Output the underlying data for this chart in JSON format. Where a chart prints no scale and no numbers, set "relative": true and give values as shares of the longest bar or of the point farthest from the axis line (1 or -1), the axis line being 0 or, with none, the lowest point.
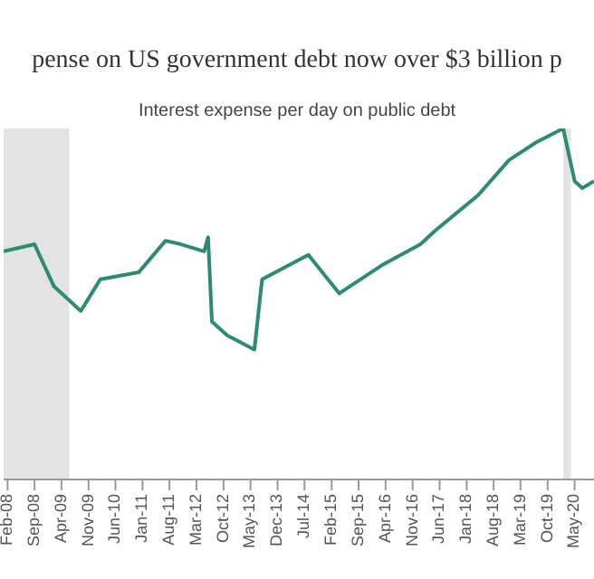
{
  "chart_data": {
    "type": "line",
    "title": "pense on US government debt now over $3 billion p",
    "subtitle": "Interest expense per day on public debt",
    "relative": true,
    "grid": false,
    "legend": false,
    "marker": "none",
    "line_style": "solid",
    "xlim": [
      "2008-01",
      "2020-10"
    ],
    "xticks": [
      {
        "value": "2008-02",
        "label": "Feb-08"
      },
      {
        "value": "2008-09",
        "label": "Sep-08"
      },
      {
        "value": "2009-04",
        "label": "Apr-09"
      },
      {
        "value": "2009-11",
        "label": "Nov-09"
      },
      {
        "value": "2010-06",
        "label": "Jun-10"
      },
      {
        "value": "2011-01",
        "label": "Jan-11"
      },
      {
        "value": "2011-08",
        "label": "Aug-11"
      },
      {
        "value": "2012-03",
        "label": "Mar-12"
      },
      {
        "value": "2012-10",
        "label": "Oct-12"
      },
      {
        "value": "2013-05",
        "label": "May-13"
      },
      {
        "value": "2013-12",
        "label": "Dec-13"
      },
      {
        "value": "2014-07",
        "label": "Jul-14"
      },
      {
        "value": "2015-02",
        "label": "Feb-15"
      },
      {
        "value": "2015-09",
        "label": "Sep-15"
      },
      {
        "value": "2016-04",
        "label": "Apr-16"
      },
      {
        "value": "2016-11",
        "label": "Nov-16"
      },
      {
        "value": "2017-06",
        "label": "Jun-17"
      },
      {
        "value": "2018-01",
        "label": "Jan-18"
      },
      {
        "value": "2018-08",
        "label": "Aug-18"
      },
      {
        "value": "2019-03",
        "label": "Mar-19"
      },
      {
        "value": "2019-10",
        "label": "Oct-19"
      },
      {
        "value": "2020-05",
        "label": "May-20"
      }
    ],
    "x": [
      "2008-01",
      "2008-09",
      "2009-02",
      "2009-09",
      "2010-02",
      "2010-12",
      "2011-07",
      "2011-11",
      "2012-05",
      "2012-06",
      "2012-07",
      "2012-11",
      "2013-06",
      "2013-08",
      "2014-08",
      "2015-04",
      "2016-03",
      "2017-01",
      "2017-05",
      "2018-04",
      "2018-12",
      "2019-07",
      "2020-02",
      "2020-05",
      "2020-07",
      "2020-10"
    ],
    "series": [
      {
        "color": "#2e8b73",
        "values": [
          0.65,
          0.67,
          0.55,
          0.48,
          0.57,
          0.59,
          0.68,
          0.67,
          0.65,
          0.69,
          0.45,
          0.41,
          0.37,
          0.57,
          0.64,
          0.53,
          0.61,
          0.67,
          0.71,
          0.81,
          0.91,
          0.96,
          1,
          0.85,
          0.83,
          0.85
        ]
      }
    ],
    "bands": [
      {
        "axis": "x",
        "from": "2008-01",
        "to": "2009-06",
        "color": "#e3e3e3"
      },
      {
        "axis": "x",
        "from": "2020-02",
        "to": "2020-04",
        "color": "#e3e3e3"
      }
    ]
  }
}
